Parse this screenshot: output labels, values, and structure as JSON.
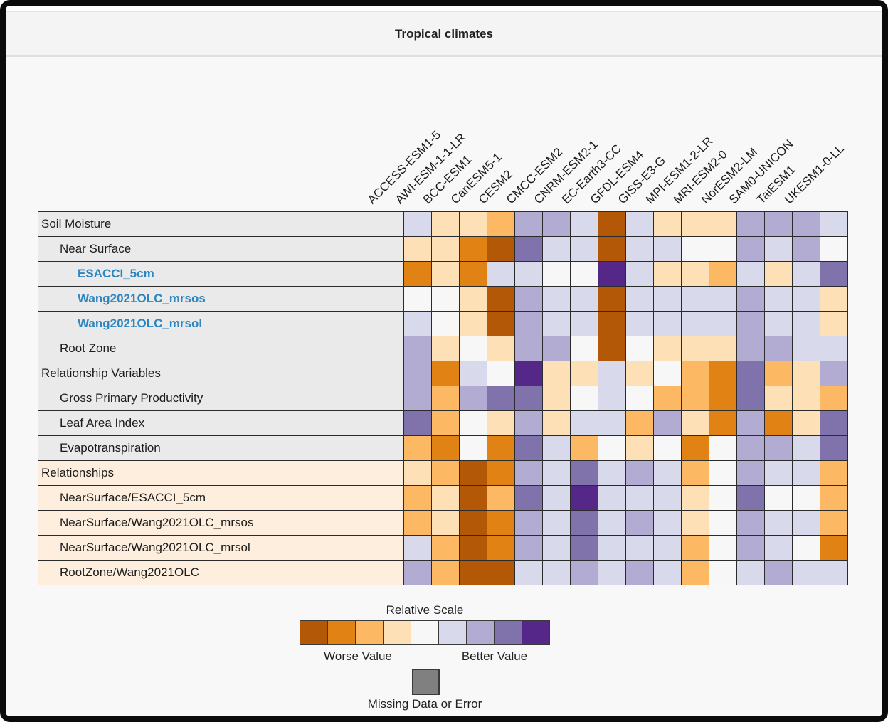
{
  "window": {
    "title": "Tropical climates"
  },
  "legend": {
    "title": "Relative Scale",
    "worse_label": "Worse Value",
    "better_label": "Better Value",
    "missing_label": "Missing Data or Error"
  },
  "colors": {
    "scale": [
      "#b35806",
      "#e08214",
      "#fdb863",
      "#fee0b6",
      "#f7f7f7",
      "#d8daeb",
      "#b2abd2",
      "#8073ac",
      "#542788"
    ],
    "missing": "#808080",
    "link_blue": "#2e86c1",
    "row_label_bg": "#eaeaea",
    "row_label_bg_relationships": "#fdeedd",
    "grid_line": "#2b2b2b"
  },
  "chart_data": {
    "type": "heatmap",
    "title": "Tropical climates",
    "colormap": "PuOr (9 bins), 1 = worse (dark orange) … 5 = neutral (white) … 9 = better (dark purple)",
    "legend_position": "bottom center",
    "columns": [
      "ACCESS-ESM1-5",
      "AWI-ESM-1-1-LR",
      "BCC-ESM1",
      "CanESM5-1",
      "CESM2",
      "CMCC-ESM2",
      "CNRM-ESM2-1",
      "EC-Earth3-CC",
      "GFDL-ESM4",
      "GISS-E3-G",
      "MPI-ESM1-2-LR",
      "MRI-ESM2-0",
      "NorESM2-LM",
      "SAM0-UNICON",
      "TaiESM1",
      "UKESM1-0-LL"
    ],
    "rows": [
      {
        "label": "Soil Moisture",
        "indent": 0,
        "link": false,
        "section": "variables",
        "values": [
          6,
          4,
          4,
          3,
          7,
          7,
          6,
          1,
          6,
          4,
          4,
          4,
          7,
          7,
          7,
          6
        ]
      },
      {
        "label": "Near Surface",
        "indent": 1,
        "link": false,
        "section": "variables",
        "values": [
          4,
          4,
          2,
          1,
          8,
          6,
          6,
          1,
          6,
          6,
          5,
          5,
          7,
          6,
          7,
          5
        ]
      },
      {
        "label": "ESACCI_5cm",
        "indent": 2,
        "link": true,
        "section": "variables",
        "values": [
          2,
          4,
          2,
          6,
          6,
          5,
          5,
          9,
          6,
          4,
          4,
          3,
          6,
          4,
          6,
          8
        ]
      },
      {
        "label": "Wang2021OLC_mrsos",
        "indent": 2,
        "link": true,
        "section": "variables",
        "values": [
          5,
          5,
          4,
          1,
          7,
          6,
          6,
          1,
          6,
          6,
          6,
          6,
          7,
          6,
          6,
          4
        ]
      },
      {
        "label": "Wang2021OLC_mrsol",
        "indent": 2,
        "link": true,
        "section": "variables",
        "values": [
          6,
          5,
          4,
          1,
          7,
          6,
          6,
          1,
          6,
          6,
          6,
          6,
          7,
          6,
          6,
          4
        ]
      },
      {
        "label": "Root Zone",
        "indent": 1,
        "link": false,
        "section": "variables",
        "values": [
          7,
          4,
          5,
          4,
          7,
          7,
          5,
          1,
          5,
          4,
          4,
          4,
          7,
          7,
          6,
          6
        ]
      },
      {
        "label": "Relationship Variables",
        "indent": 0,
        "link": false,
        "section": "variables",
        "values": [
          7,
          2,
          6,
          5,
          9,
          4,
          4,
          6,
          4,
          5,
          3,
          2,
          8,
          3,
          4,
          7
        ]
      },
      {
        "label": "Gross Primary Productivity",
        "indent": 1,
        "link": false,
        "section": "variables",
        "values": [
          7,
          3,
          7,
          8,
          8,
          4,
          5,
          6,
          5,
          3,
          3,
          2,
          8,
          4,
          4,
          3
        ]
      },
      {
        "label": "Leaf Area Index",
        "indent": 1,
        "link": false,
        "section": "variables",
        "values": [
          8,
          3,
          5,
          4,
          7,
          4,
          6,
          6,
          3,
          7,
          4,
          2,
          7,
          2,
          4,
          8
        ]
      },
      {
        "label": "Evapotranspiration",
        "indent": 1,
        "link": false,
        "section": "variables",
        "values": [
          3,
          2,
          5,
          2,
          8,
          6,
          3,
          5,
          4,
          5,
          2,
          5,
          7,
          7,
          6,
          8
        ]
      },
      {
        "label": "Relationships",
        "indent": 0,
        "link": false,
        "section": "relationships",
        "values": [
          4,
          3,
          1,
          2,
          7,
          6,
          8,
          6,
          7,
          6,
          3,
          5,
          7,
          6,
          6,
          3
        ]
      },
      {
        "label": "NearSurface/ESACCI_5cm",
        "indent": 1,
        "link": false,
        "section": "relationships",
        "values": [
          3,
          4,
          1,
          3,
          8,
          6,
          9,
          6,
          6,
          6,
          4,
          5,
          8,
          5,
          5,
          3
        ]
      },
      {
        "label": "NearSurface/Wang2021OLC_mrsos",
        "indent": 1,
        "link": false,
        "section": "relationships",
        "values": [
          3,
          4,
          1,
          2,
          7,
          6,
          8,
          6,
          7,
          6,
          4,
          5,
          7,
          6,
          6,
          3
        ]
      },
      {
        "label": "NearSurface/Wang2021OLC_mrsol",
        "indent": 1,
        "link": false,
        "section": "relationships",
        "values": [
          6,
          3,
          1,
          2,
          7,
          6,
          8,
          6,
          6,
          6,
          3,
          5,
          7,
          6,
          5,
          2
        ]
      },
      {
        "label": "RootZone/Wang2021OLC",
        "indent": 1,
        "link": false,
        "section": "relationships",
        "values": [
          7,
          3,
          1,
          1,
          6,
          6,
          7,
          6,
          7,
          6,
          3,
          5,
          6,
          7,
          6,
          6
        ]
      }
    ]
  }
}
